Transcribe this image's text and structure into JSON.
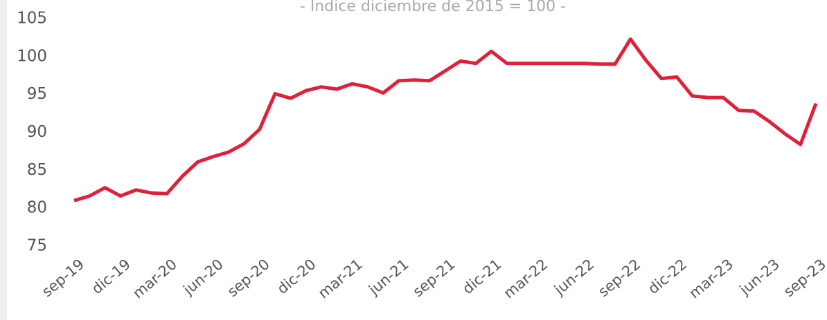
{
  "chart_data": {
    "type": "line",
    "subtitle": "- Índice diciembre de 2015 = 100 -",
    "categories": [
      "sep-19",
      null,
      null,
      "dic-19",
      null,
      null,
      "mar-20",
      null,
      null,
      "jun-20",
      null,
      null,
      "sep-20",
      null,
      null,
      "dic-20",
      null,
      null,
      "mar-21",
      null,
      null,
      "jun-21",
      null,
      null,
      "sep-21",
      null,
      null,
      "dic-21",
      null,
      null,
      "mar-22",
      null,
      null,
      "jun-22",
      null,
      null,
      "sep-22",
      null,
      null,
      "dic-22",
      null,
      null,
      "mar-23",
      null,
      null,
      "jun-23",
      null,
      null,
      "sep-23"
    ],
    "values": [
      81.0,
      81.6,
      82.7,
      81.6,
      82.4,
      82.0,
      81.9,
      84.2,
      86.1,
      86.8,
      87.4,
      88.5,
      90.4,
      95.1,
      94.5,
      95.5,
      96.0,
      95.7,
      96.4,
      96.0,
      95.2,
      96.8,
      96.9,
      96.8,
      98.1,
      99.4,
      99.1,
      100.7,
      99.1,
      99.1,
      99.1,
      99.1,
      99.1,
      99.1,
      99.0,
      99.0,
      102.3,
      99.5,
      97.1,
      97.3,
      94.8,
      94.6,
      94.6,
      92.9,
      92.8,
      91.4,
      89.8,
      88.4,
      93.8
    ],
    "color": "#e0203a",
    "ylim": [
      75,
      105
    ],
    "yticks": [
      75,
      80,
      85,
      90,
      95,
      100,
      105
    ],
    "grid": false
  }
}
